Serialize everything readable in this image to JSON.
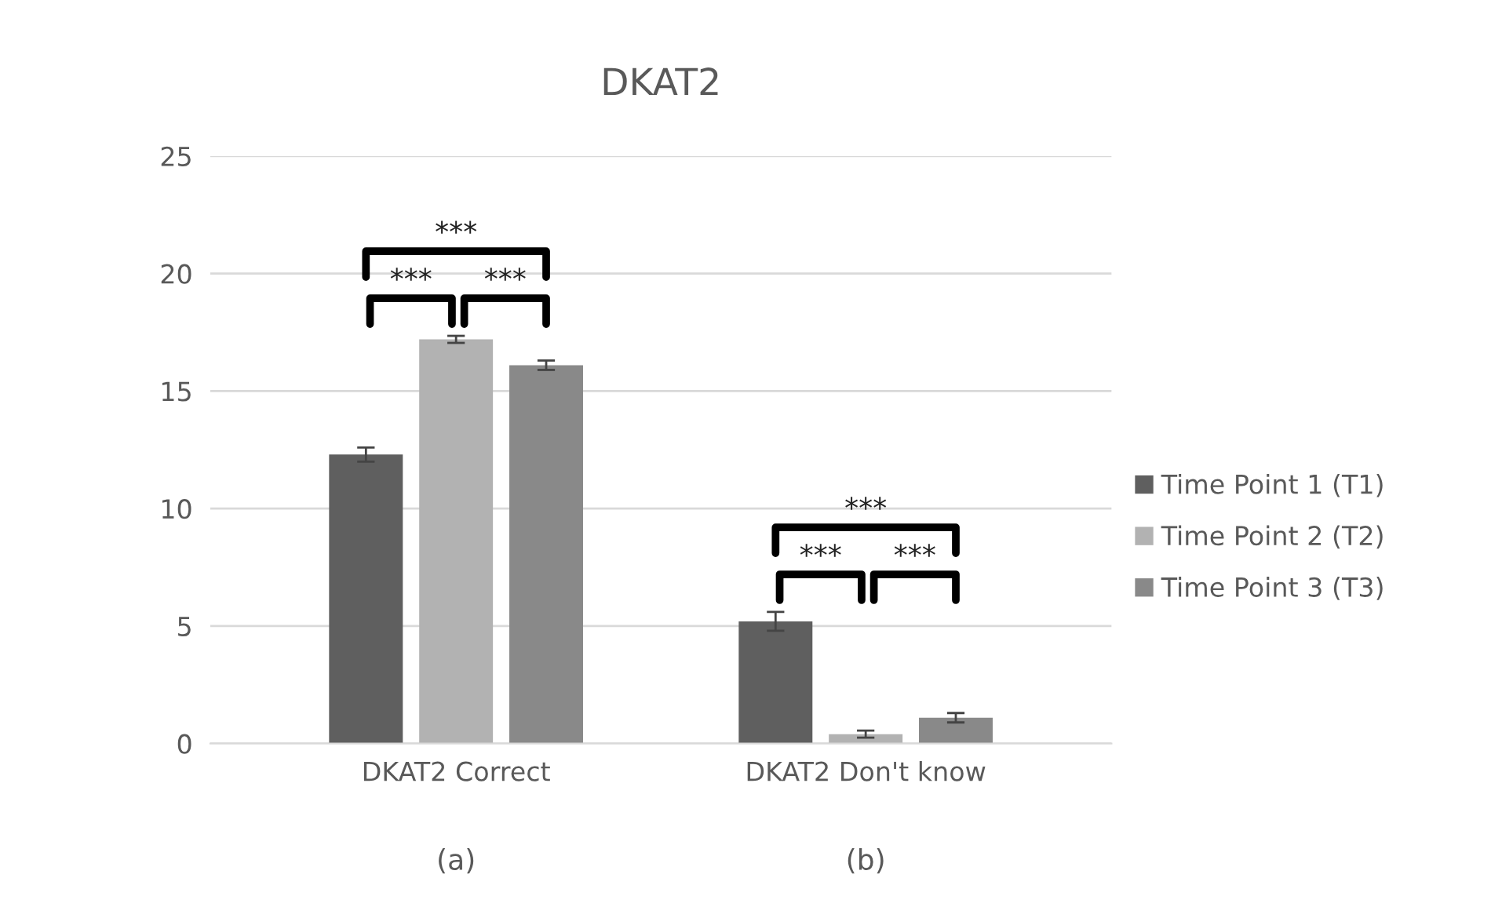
{
  "chart_data": {
    "type": "bar",
    "title": "DKAT2",
    "categories": [
      "DKAT2 Correct",
      "DKAT2 Don't know"
    ],
    "series": [
      {
        "name": "Time Point 1 (T1)",
        "color": "#5f5f5f",
        "values": [
          12.3,
          5.2
        ],
        "errors": [
          0.3,
          0.4
        ]
      },
      {
        "name": "Time Point 2 (T2)",
        "color": "#b2b2b2",
        "values": [
          17.2,
          0.4
        ],
        "errors": [
          0.15,
          0.15
        ]
      },
      {
        "name": "Time Point 3 (T3)",
        "color": "#898989",
        "values": [
          16.1,
          1.1
        ],
        "errors": [
          0.2,
          0.2
        ]
      }
    ],
    "ylim": [
      0,
      25
    ],
    "yticks": [
      0,
      5,
      10,
      15,
      20,
      25
    ],
    "grid": "y",
    "legend": "right",
    "annotations": [
      "***",
      "***",
      "***",
      "***",
      "***",
      "***",
      "(a)",
      "(b)"
    ]
  }
}
